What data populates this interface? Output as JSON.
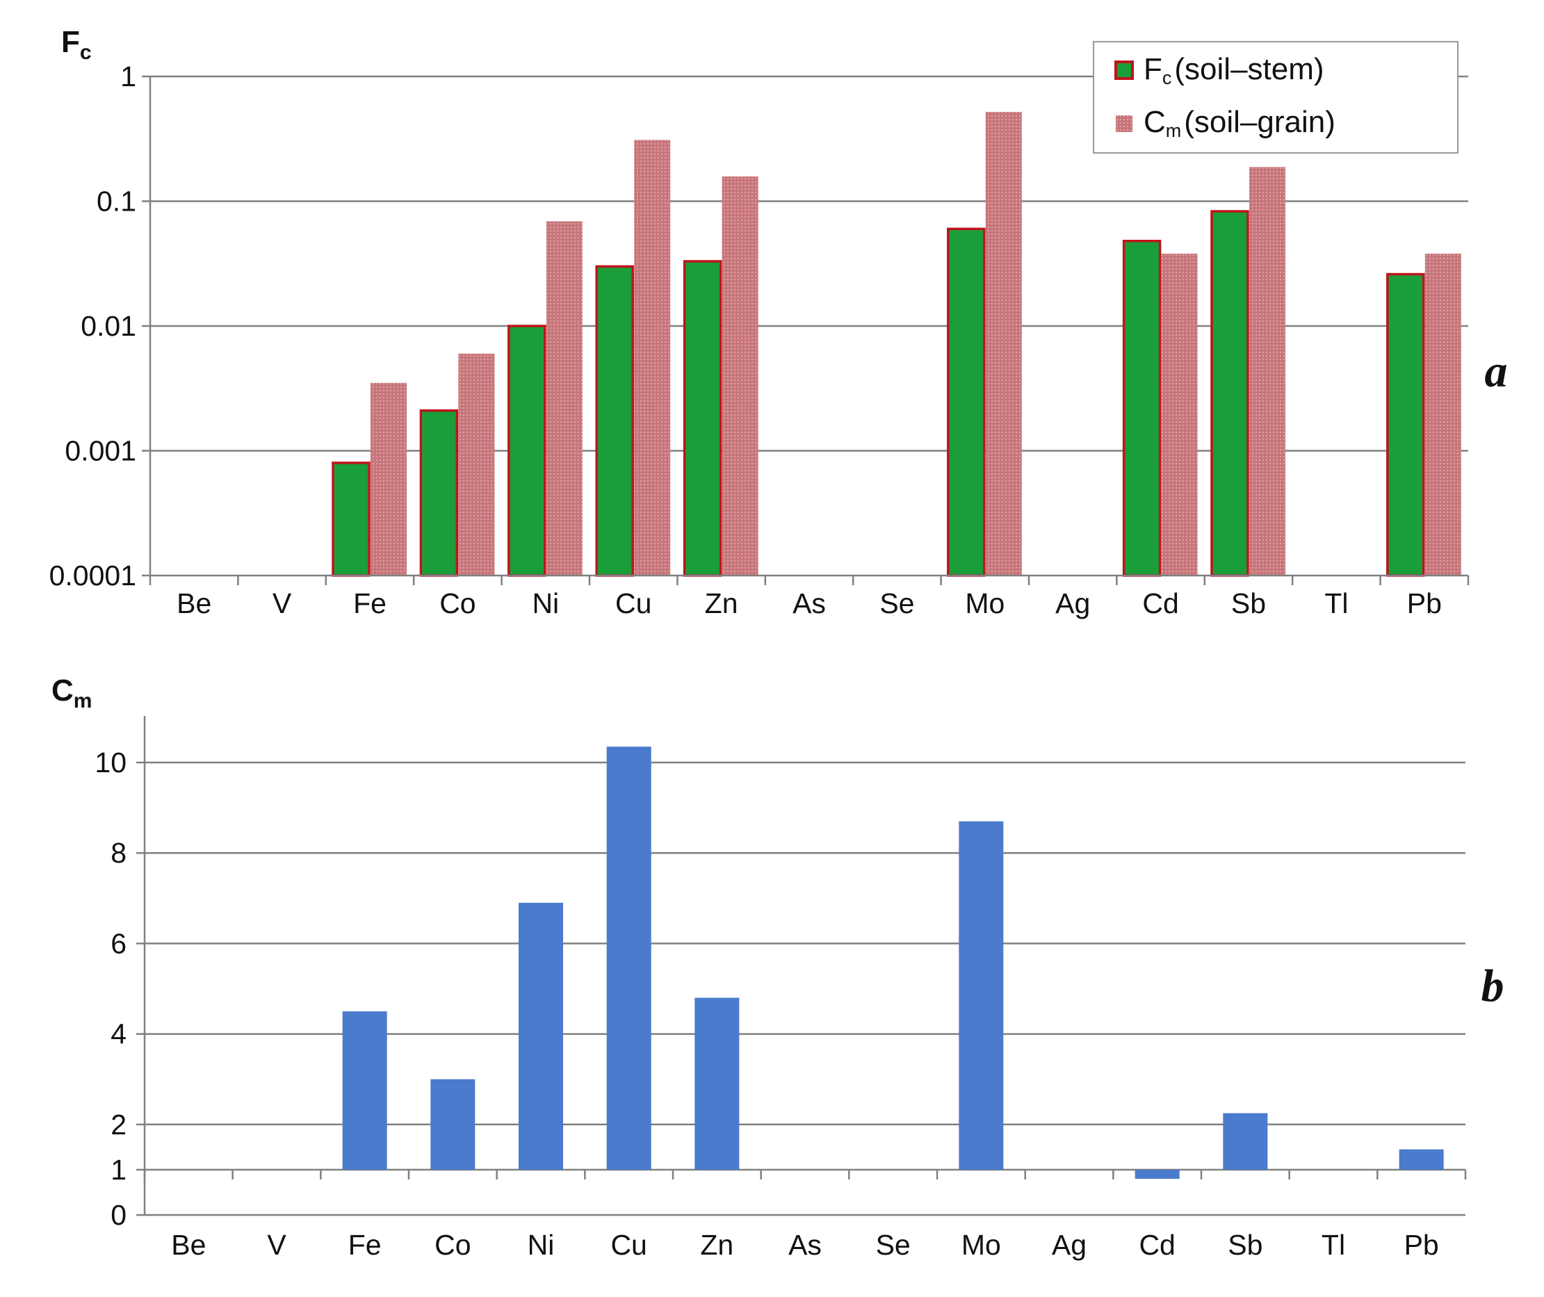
{
  "categories": [
    "Be",
    "V",
    "Fe",
    "Co",
    "Ni",
    "Cu",
    "Zn",
    "As",
    "Se",
    "Mo",
    "Ag",
    "Cd",
    "Sb",
    "Tl",
    "Pb"
  ],
  "colors": {
    "fc_fill": "#1a9e3a",
    "fc_edge": "#c0141c",
    "cm_grain": "#c8767b",
    "cm_bar": "#4a7bcd",
    "grid": "#808080",
    "axis": "#808080"
  },
  "chart_data": [
    {
      "type": "bar",
      "panel_label": "a",
      "ylabel": "F",
      "ylabel_sub": "c",
      "yscale": "log",
      "ylim": [
        0.0001,
        1
      ],
      "yticks": [
        "0.0001",
        "0.001",
        "0.01",
        "0.1",
        "1"
      ],
      "categories": [
        "Be",
        "V",
        "Fe",
        "Co",
        "Ni",
        "Cu",
        "Zn",
        "As",
        "Se",
        "Mo",
        "Ag",
        "Cd",
        "Sb",
        "Tl",
        "Pb"
      ],
      "legend_position": "top-right",
      "series": [
        {
          "name": "F",
          "name_sub": "c",
          "name_rest": "(soil–stem)",
          "values": [
            null,
            null,
            0.0008,
            0.0021,
            0.01,
            0.03,
            0.033,
            null,
            null,
            0.06,
            null,
            0.048,
            0.083,
            null,
            0.026
          ]
        },
        {
          "name": "C",
          "name_sub": "m",
          "name_rest": "(soil–grain)",
          "values": [
            null,
            null,
            0.0035,
            0.006,
            0.069,
            0.31,
            0.158,
            null,
            null,
            0.52,
            null,
            0.038,
            0.188,
            null,
            0.038
          ]
        }
      ]
    },
    {
      "type": "bar",
      "panel_label": "b",
      "ylabel": "C",
      "ylabel_sub": "m",
      "ylim": [
        0,
        11
      ],
      "baseline": 1,
      "yticks": [
        "0",
        "1",
        "2",
        "4",
        "6",
        "8",
        "10"
      ],
      "categories": [
        "Be",
        "V",
        "Fe",
        "Co",
        "Ni",
        "Cu",
        "Zn",
        "As",
        "Se",
        "Mo",
        "Ag",
        "Cd",
        "Sb",
        "Tl",
        "Pb"
      ],
      "values": [
        null,
        null,
        4.5,
        3.0,
        6.9,
        10.35,
        4.8,
        null,
        null,
        8.7,
        null,
        0.8,
        2.25,
        null,
        1.45
      ]
    }
  ]
}
